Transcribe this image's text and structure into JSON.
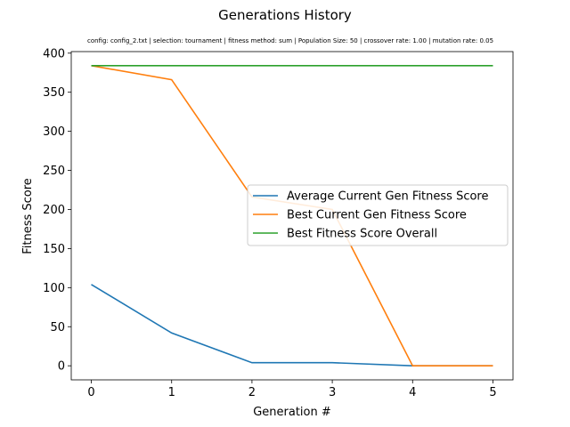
{
  "chart_data": {
    "type": "line",
    "title": "Generations History",
    "subtitle": "config: config_2.txt | selection: tournament | fitness method: sum | Population Size: 50 | crossover rate: 1.00 | mutation rate: 0.05",
    "xlabel": "Generation #",
    "ylabel": "Fitness Score",
    "x": [
      0,
      1,
      2,
      3,
      4,
      5
    ],
    "xlim": [
      -0.25,
      5.25
    ],
    "ylim": [
      -18,
      402
    ],
    "xticks": [
      0,
      1,
      2,
      3,
      4,
      5
    ],
    "yticks": [
      0,
      50,
      100,
      150,
      200,
      250,
      300,
      350,
      400
    ],
    "grid": false,
    "legend_placement": "center-right",
    "series": [
      {
        "name": "Average Current Gen Fitness Score",
        "color": "#1f77b4",
        "values": [
          104,
          42,
          4,
          4,
          0,
          0
        ]
      },
      {
        "name": "Best Current Gen Fitness Score",
        "color": "#ff7f0e",
        "values": [
          384,
          366,
          216,
          200,
          0,
          0
        ]
      },
      {
        "name": "Best Fitness Score Overall",
        "color": "#2ca02c",
        "values": [
          384,
          384,
          384,
          384,
          384,
          384
        ]
      }
    ]
  }
}
